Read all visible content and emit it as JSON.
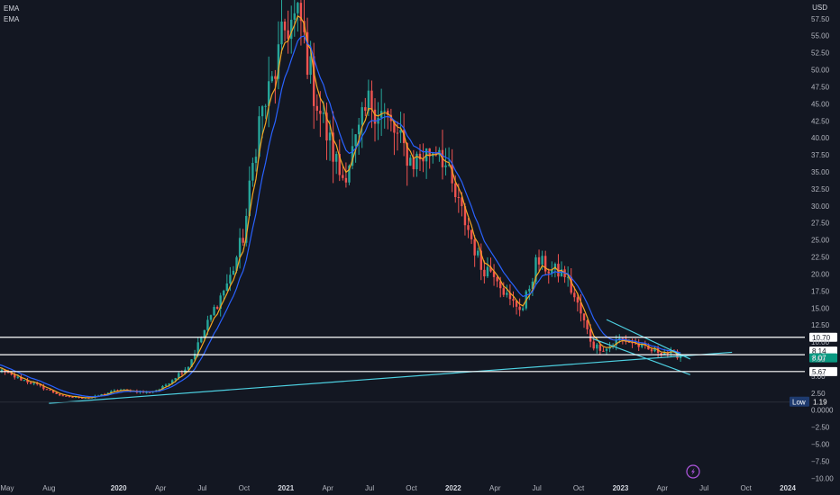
{
  "chart_data": {
    "type": "candlestick",
    "legend": [
      "EMA",
      "EMA"
    ],
    "currency": "USD",
    "y_ticks": [
      -10.0,
      -7.5,
      -5.0,
      -2.5,
      0.0,
      2.5,
      5.0,
      7.5,
      10.0,
      12.5,
      15.0,
      17.5,
      20.0,
      22.5,
      25.0,
      27.5,
      30.0,
      32.5,
      35.0,
      37.5,
      40.0,
      42.5,
      45.0,
      47.5,
      50.0,
      52.5,
      55.0,
      57.5
    ],
    "y_tick_labels": [
      "−10.00",
      "−7.50",
      "−5.00",
      "−2.50",
      "0.0000",
      "2.50",
      "5.00",
      "7.50",
      "10.00",
      "12.50",
      "15.00",
      "17.50",
      "20.00",
      "22.50",
      "25.00",
      "27.50",
      "30.00",
      "32.50",
      "35.00",
      "37.50",
      "40.00",
      "42.50",
      "45.00",
      "47.50",
      "50.00",
      "52.50",
      "55.00",
      "57.50"
    ],
    "x_ticks": [
      {
        "label": "May",
        "date": "2019-05",
        "bold": false
      },
      {
        "label": "Aug",
        "date": "2019-08",
        "bold": false
      },
      {
        "label": "2020",
        "date": "2020-01",
        "bold": true
      },
      {
        "label": "Apr",
        "date": "2020-04",
        "bold": false
      },
      {
        "label": "Jul",
        "date": "2020-07",
        "bold": false
      },
      {
        "label": "Oct",
        "date": "2020-10",
        "bold": false
      },
      {
        "label": "2021",
        "date": "2021-01",
        "bold": true
      },
      {
        "label": "Apr",
        "date": "2021-04",
        "bold": false
      },
      {
        "label": "Jul",
        "date": "2021-07",
        "bold": false
      },
      {
        "label": "Oct",
        "date": "2021-10",
        "bold": false
      },
      {
        "label": "2022",
        "date": "2022-01",
        "bold": true
      },
      {
        "label": "Apr",
        "date": "2022-04",
        "bold": false
      },
      {
        "label": "Jul",
        "date": "2022-07",
        "bold": false
      },
      {
        "label": "Oct",
        "date": "2022-10",
        "bold": false
      },
      {
        "label": "2023",
        "date": "2023-01",
        "bold": true
      },
      {
        "label": "Apr",
        "date": "2023-04",
        "bold": false
      },
      {
        "label": "Jul",
        "date": "2023-07",
        "bold": false
      },
      {
        "label": "Oct",
        "date": "2023-10",
        "bold": false
      },
      {
        "label": "2024",
        "date": "2024-01",
        "bold": true
      }
    ],
    "price_anchors": [
      [
        "2019-03",
        7.4
      ],
      [
        "2019-05",
        5.3
      ],
      [
        "2019-07",
        3.8
      ],
      [
        "2019-09",
        2.0
      ],
      [
        "2019-11",
        1.8
      ],
      [
        "2020-01",
        3.0
      ],
      [
        "2020-03",
        2.6
      ],
      [
        "2020-04",
        3.1
      ],
      [
        "2020-06",
        6.5
      ],
      [
        "2020-07",
        11.0
      ],
      [
        "2020-08",
        15.5
      ],
      [
        "2020-09",
        19.5
      ],
      [
        "2020-10",
        26.0
      ],
      [
        "2020-11",
        42.0
      ],
      [
        "2020-12",
        48.0
      ],
      [
        "2021-01",
        56.5
      ],
      [
        "2021-02",
        57.5
      ],
      [
        "2021-03",
        47.0
      ],
      [
        "2021-04",
        40.0
      ],
      [
        "2021-05",
        34.0
      ],
      [
        "2021-06",
        39.0
      ],
      [
        "2021-07",
        45.5
      ],
      [
        "2021-08",
        43.5
      ],
      [
        "2021-09",
        40.0
      ],
      [
        "2021-10",
        36.5
      ],
      [
        "2021-11",
        37.5
      ],
      [
        "2021-12",
        39.0
      ],
      [
        "2022-01",
        32.0
      ],
      [
        "2022-02",
        27.0
      ],
      [
        "2022-03",
        21.0
      ],
      [
        "2022-04",
        20.5
      ],
      [
        "2022-05",
        16.0
      ],
      [
        "2022-06",
        15.0
      ],
      [
        "2022-07",
        22.0
      ],
      [
        "2022-08",
        20.5
      ],
      [
        "2022-09",
        20.0
      ],
      [
        "2022-10",
        15.0
      ],
      [
        "2022-11",
        9.5
      ],
      [
        "2022-12",
        9.0
      ],
      [
        "2023-01",
        10.5
      ],
      [
        "2023-02",
        9.8
      ],
      [
        "2023-03",
        8.8
      ],
      [
        "2023-04",
        8.6
      ],
      [
        "2023-05",
        8.1
      ]
    ],
    "horizontal_levels": [
      {
        "value": 10.7,
        "label": "10.70",
        "style": "white"
      },
      {
        "value": 8.14,
        "label": "8.14",
        "style": "white"
      },
      {
        "value": 8.07,
        "label": "8.07",
        "style": "green"
      },
      {
        "value": 5.67,
        "label": "5.67",
        "style": "white"
      }
    ],
    "low_marker": {
      "label": "Low",
      "value": 1.19,
      "value_label": "1.19"
    },
    "trendlines": [
      {
        "from": [
          "2019-08",
          1.0
        ],
        "to": [
          "2023-09",
          8.5
        ]
      },
      {
        "from": [
          "2022-12",
          13.3
        ],
        "to": [
          "2023-06",
          7.5
        ]
      },
      {
        "from": [
          "2022-11",
          10.5
        ],
        "to": [
          "2023-06",
          5.2
        ]
      }
    ],
    "colors": {
      "background": "#131722",
      "up": "#26a69a",
      "down": "#ef5350",
      "ema_fast": "#f5a623",
      "ema_slow": "#2962ff",
      "trendline": "#4dd0e1",
      "level_line": "#ffffff",
      "last_price": "#089981",
      "low_badge": "#1e3a6e",
      "lightning": "#b056e0"
    },
    "grid": false,
    "ylim": [
      -10,
      60
    ],
    "xlim": [
      "2019-03",
      "2024-01"
    ]
  }
}
